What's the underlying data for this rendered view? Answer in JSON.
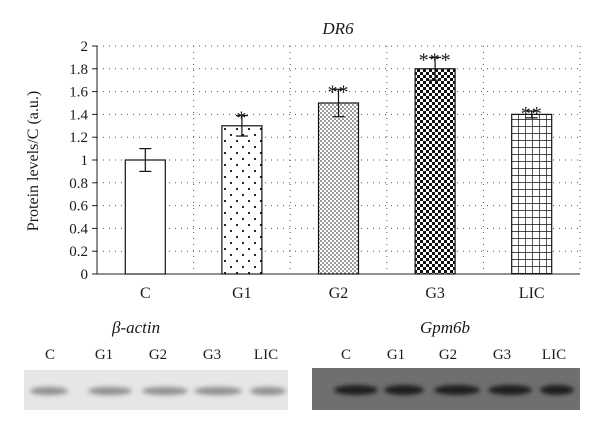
{
  "chart_data": {
    "type": "bar",
    "title": "DR6",
    "ylabel": "Protein levels/C (a.u.)",
    "xlabel": "",
    "categories": [
      "C",
      "G1",
      "G2",
      "G3",
      "LIC"
    ],
    "values": [
      1.0,
      1.3,
      1.5,
      1.8,
      1.4
    ],
    "errors": [
      0.1,
      0.09,
      0.12,
      0.1,
      0.03
    ],
    "significance": [
      "",
      "*",
      "**",
      "***",
      "**"
    ],
    "patterns": [
      "empty",
      "sparse-dots",
      "fine-dots",
      "checker",
      "grid"
    ],
    "ylim": [
      0,
      2
    ],
    "yticks": [
      "0",
      "0.2",
      "0.4",
      "0.6",
      "0.8",
      "1",
      "1.2",
      "1.4",
      "1.6",
      "1.8",
      "2"
    ],
    "grid": "dotted-both"
  },
  "blots": [
    {
      "label": "β-actin",
      "lanes": [
        "C",
        "G1",
        "G2",
        "G3",
        "LIC"
      ],
      "background": "#e6e6e6",
      "band_color": "#8f8f8f"
    },
    {
      "label": "Gpm6b",
      "lanes": [
        "C",
        "G1",
        "G2",
        "G3",
        "LIC"
      ],
      "background": "#6f6f6f",
      "band_color": "#1f1f1f"
    }
  ]
}
